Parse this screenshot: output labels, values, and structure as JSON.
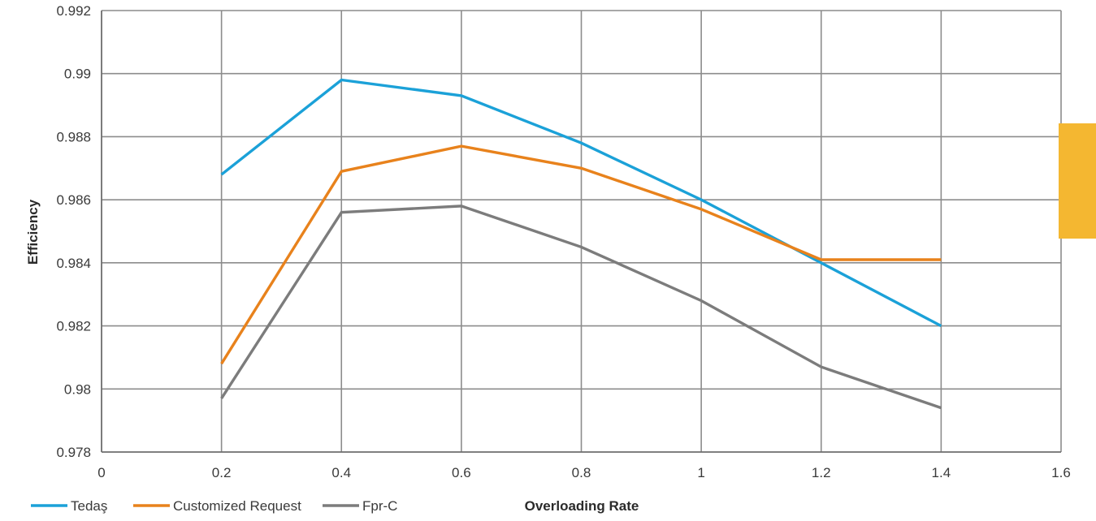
{
  "chart_data": {
    "type": "line",
    "title": "",
    "xlabel": "Overloading Rate",
    "ylabel": "Efficiency",
    "xlim": [
      0,
      1.6
    ],
    "ylim": [
      0.978,
      0.992
    ],
    "x_ticks": [
      "0",
      "0.2",
      "0.4",
      "0.6",
      "0.8",
      "1",
      "1.2",
      "1.4",
      "1.6"
    ],
    "y_ticks": [
      "0.978",
      "0.98",
      "0.982",
      "0.984",
      "0.986",
      "0.988",
      "0.99",
      "0.992"
    ],
    "grid": true,
    "legend_position": "bottom-left",
    "x": [
      0.2,
      0.4,
      0.6,
      0.8,
      1,
      1.2,
      1.4
    ],
    "series": [
      {
        "name": "Tedaş",
        "color": "#1ba1d8",
        "values": [
          0.9868,
          0.9898,
          0.9893,
          0.9878,
          0.986,
          0.984,
          0.982
        ]
      },
      {
        "name": "Customized Request",
        "color": "#e8821c",
        "values": [
          0.9808,
          0.9869,
          0.9877,
          0.987,
          0.9857,
          0.9841,
          0.9841
        ]
      },
      {
        "name": "Fpr-C",
        "color": "#7c7c7c",
        "values": [
          0.9797,
          0.9856,
          0.9858,
          0.9845,
          0.9828,
          0.9807,
          0.9794
        ]
      }
    ]
  },
  "decor": {
    "side_tab_color": "#f4b731"
  }
}
